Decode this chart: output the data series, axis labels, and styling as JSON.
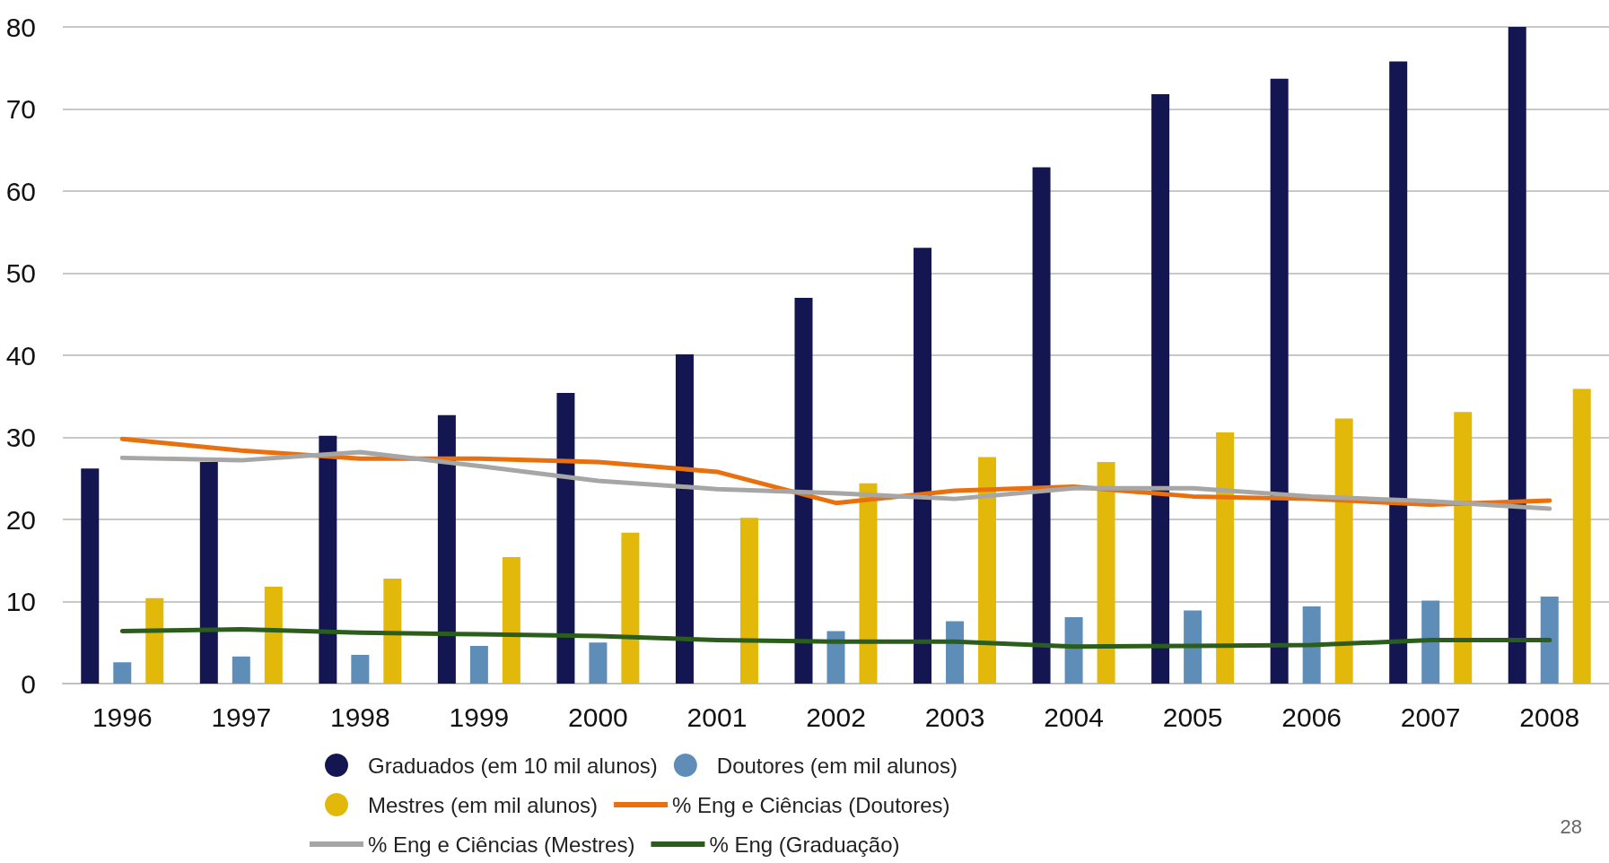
{
  "chart_data": {
    "type": "bar",
    "categories": [
      "1996",
      "1997",
      "1998",
      "1999",
      "2000",
      "2001",
      "2002",
      "2003",
      "2004",
      "2005",
      "2006",
      "2007",
      "2008"
    ],
    "series": [
      {
        "name": "Graduados (em 10 mil alunos)",
        "color": "#141652",
        "values": [
          26.2,
          27,
          30.2,
          32.7,
          35.4,
          40.1,
          47,
          53.1,
          62.9,
          71.8,
          73.7,
          75.8,
          80
        ]
      },
      {
        "name": "Doutores (em mil alunos)",
        "color": "#5e8db8",
        "values": [
          2.6,
          3.3,
          3.5,
          4.6,
          5,
          null,
          6.4,
          7.6,
          8.1,
          8.9,
          9.4,
          10.1,
          10.6
        ]
      },
      {
        "name": "Mestres (em mil alunos)",
        "color": "#e2b90a",
        "values": [
          10.4,
          11.8,
          12.8,
          15.4,
          18.4,
          20.2,
          24.4,
          27.6,
          27,
          30.6,
          32.3,
          33.1,
          35.9
        ]
      },
      {
        "name": "% Eng e Ciências (Doutores)",
        "type": "line",
        "color": "#e8700e",
        "values": [
          29.8,
          28.4,
          27.4,
          27.4,
          27,
          25.8,
          22,
          23.5,
          24,
          22.8,
          22.5,
          21.8,
          22.3
        ]
      },
      {
        "name": "% Eng e Ciências (Mestres)",
        "type": "line",
        "color": "#a6a6a6",
        "values": [
          27.5,
          27.2,
          28.2,
          26.5,
          24.7,
          23.7,
          23.2,
          22.5,
          23.8,
          23.8,
          22.8,
          22.2,
          21.3
        ]
      },
      {
        "name": "% Eng (Graduação)",
        "type": "line",
        "color": "#2b5e1c",
        "values": [
          6.4,
          6.6,
          6.2,
          6,
          5.8,
          5.3,
          5.1,
          5.1,
          4.5,
          4.6,
          4.7,
          5.3,
          5.3
        ]
      }
    ],
    "ylim": [
      0,
      80
    ],
    "yticks": [
      0,
      10,
      20,
      30,
      40,
      50,
      60,
      70,
      80
    ],
    "grid": "y",
    "legend": "bottom",
    "marker": "none",
    "line_style": "solid",
    "annotations": [
      "28"
    ]
  }
}
